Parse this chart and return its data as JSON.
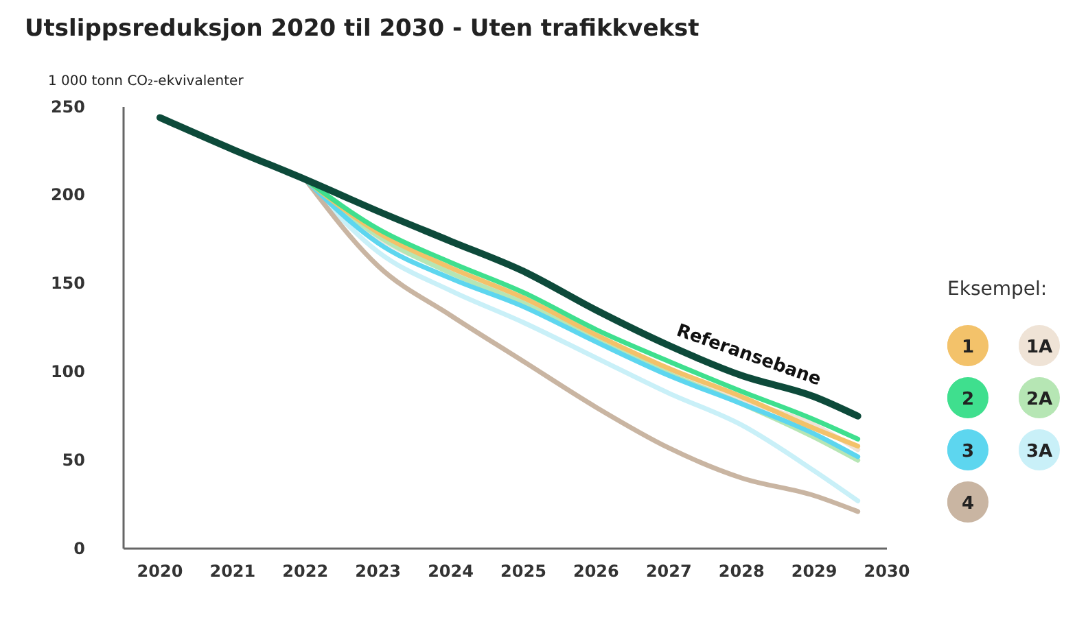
{
  "chart_data": {
    "type": "line",
    "title": "Utslippsreduksjon 2020 til 2030 - Uten trafikkvekst",
    "ylabel": "1 000 tonn CO₂-ekvivalenter",
    "legend_title": "Eksempel:",
    "legend": "right",
    "grid": false,
    "marker": "none",
    "line_style": "solid",
    "xlim": [
      2019.5,
      2030
    ],
    "xticks": [
      2020,
      2021,
      2022,
      2023,
      2024,
      2025,
      2026,
      2027,
      2028,
      2029,
      2030
    ],
    "ylim": [
      0,
      250
    ],
    "yticks": [
      0,
      50,
      100,
      150,
      200,
      250
    ],
    "series": [
      {
        "name": "1A",
        "color": "#efe3d6",
        "x": [
          2022,
          2023,
          2024,
          2025,
          2026,
          2027,
          2028,
          2029,
          2029.6
        ],
        "values": [
          209,
          176,
          157,
          140,
          120,
          101,
          84,
          70,
          56
        ]
      },
      {
        "name": "3A",
        "color": "#c9f0f8",
        "x": [
          2022,
          2023,
          2024,
          2025,
          2026,
          2027,
          2028,
          2029,
          2029.6
        ],
        "values": [
          209,
          168,
          146,
          128,
          108,
          88,
          70,
          44,
          27
        ]
      },
      {
        "name": "4",
        "color": "#c9b5a2",
        "x": [
          2022,
          2023,
          2024,
          2025,
          2026,
          2027,
          2028,
          2029,
          2029.6
        ],
        "values": [
          209,
          160,
          132,
          106,
          80,
          57,
          40,
          30,
          21
        ]
      },
      {
        "name": "2A",
        "color": "#b6e6b4",
        "x": [
          2022,
          2023,
          2024,
          2025,
          2026,
          2027,
          2028,
          2029,
          2029.6
        ],
        "values": [
          209,
          177,
          156,
          139,
          118,
          99,
          82,
          63,
          50
        ]
      },
      {
        "name": "3",
        "color": "#5dd6ef",
        "x": [
          2022,
          2023,
          2024,
          2025,
          2026,
          2027,
          2028,
          2029,
          2029.6
        ],
        "values": [
          209,
          173,
          153,
          137,
          117,
          98,
          82,
          65,
          52
        ]
      },
      {
        "name": "1",
        "color": "#f3c26a",
        "x": [
          2022,
          2023,
          2024,
          2025,
          2026,
          2027,
          2028,
          2029,
          2029.6
        ],
        "values": [
          209,
          179,
          159,
          142,
          121,
          102,
          86,
          68,
          58
        ]
      },
      {
        "name": "2",
        "color": "#3fdf8e",
        "x": [
          2022,
          2023,
          2024,
          2025,
          2026,
          2027,
          2028,
          2029,
          2029.6
        ],
        "values": [
          209,
          181,
          162,
          145,
          124,
          106,
          89,
          73,
          62
        ]
      },
      {
        "name": "Referansebane",
        "color": "#0d4a3a",
        "x": [
          2020,
          2021,
          2022,
          2023,
          2024,
          2025,
          2026,
          2027,
          2028,
          2029,
          2029.6
        ],
        "values": [
          244,
          226,
          209,
          191,
          174,
          157,
          135,
          115,
          98,
          86,
          75
        ]
      }
    ]
  }
}
